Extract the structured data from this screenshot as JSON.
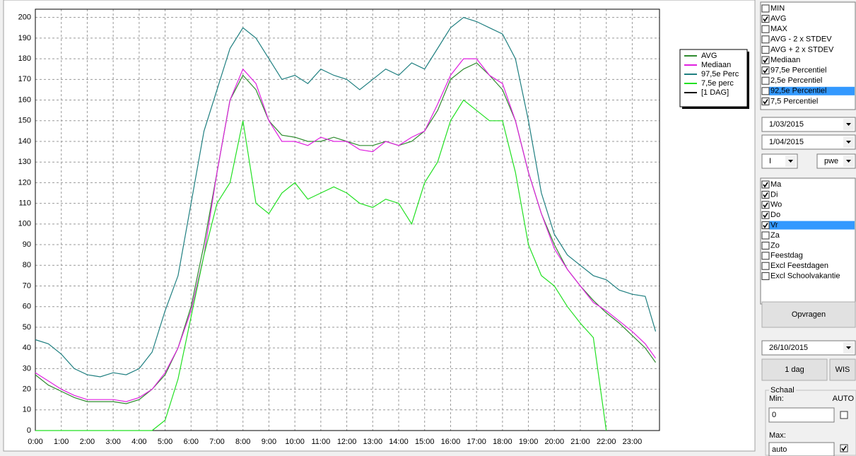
{
  "chart_data": {
    "type": "line",
    "x": [
      0,
      0.5,
      1,
      1.5,
      2,
      2.5,
      3,
      3.5,
      4,
      4.5,
      5,
      5.5,
      6,
      6.5,
      7,
      7.5,
      8,
      8.5,
      9,
      9.5,
      10,
      10.5,
      11,
      11.5,
      12,
      12.5,
      13,
      13.5,
      14,
      14.5,
      15,
      15.5,
      16,
      16.5,
      17,
      17.5,
      18,
      18.5,
      19,
      19.5,
      20,
      20.5,
      21,
      21.5,
      22,
      22.5,
      23,
      23.5,
      23.9
    ],
    "series": [
      {
        "name": "AVG",
        "color": "#2e8b2e",
        "values": [
          27,
          22,
          19,
          16,
          14,
          14,
          14,
          13,
          15,
          20,
          27,
          40,
          60,
          90,
          125,
          160,
          172,
          165,
          150,
          143,
          142,
          140,
          140,
          142,
          140,
          138,
          138,
          140,
          138,
          140,
          145,
          155,
          170,
          175,
          178,
          172,
          165,
          150,
          125,
          105,
          90,
          78,
          70,
          63,
          57,
          52,
          46,
          40,
          33
        ]
      },
      {
        "name": "Mediaan",
        "color": "#e020e0",
        "values": [
          28,
          24,
          20,
          17,
          15,
          15,
          15,
          14,
          16,
          20,
          28,
          40,
          58,
          85,
          125,
          160,
          175,
          168,
          150,
          140,
          140,
          138,
          142,
          140,
          140,
          136,
          135,
          140,
          138,
          142,
          145,
          158,
          172,
          180,
          180,
          172,
          168,
          150,
          125,
          105,
          88,
          78,
          70,
          62,
          58,
          53,
          48,
          42,
          35
        ]
      },
      {
        "name": "97,5e Perc",
        "color": "#1f7f80",
        "values": [
          44,
          42,
          37,
          30,
          27,
          26,
          28,
          27,
          30,
          38,
          58,
          75,
          110,
          145,
          165,
          185,
          195,
          190,
          180,
          170,
          172,
          168,
          175,
          172,
          170,
          165,
          170,
          175,
          172,
          178,
          175,
          185,
          195,
          200,
          198,
          195,
          192,
          180,
          150,
          115,
          95,
          85,
          80,
          75,
          73,
          68,
          66,
          65,
          48
        ]
      },
      {
        "name": "7,5e perc",
        "color": "#22e022",
        "values": [
          0,
          0,
          0,
          0,
          0,
          0,
          0,
          0,
          0,
          0,
          5,
          25,
          55,
          85,
          110,
          120,
          150,
          110,
          105,
          115,
          120,
          112,
          115,
          118,
          115,
          110,
          108,
          112,
          110,
          100,
          120,
          130,
          150,
          160,
          155,
          150,
          150,
          125,
          90,
          75,
          70,
          60,
          52,
          45,
          0,
          null,
          null,
          null,
          null
        ]
      },
      {
        "name": "[1 DAG]",
        "color": "#000000",
        "values": [
          null,
          null,
          null,
          null,
          null,
          null,
          null,
          null,
          null,
          null,
          null,
          null,
          null,
          null,
          null,
          null,
          null,
          null,
          null,
          null,
          null,
          null,
          null,
          null,
          null,
          null,
          null,
          null,
          null,
          null,
          null,
          null,
          null,
          null,
          null,
          null,
          null,
          null,
          null,
          null,
          null,
          null,
          null,
          null,
          null,
          null,
          null,
          null,
          null
        ]
      }
    ],
    "xlim": [
      0,
      24.05
    ],
    "ylim": [
      0,
      204
    ],
    "xticks": [
      {
        "value": 0,
        "label": "0:00"
      },
      {
        "value": 1,
        "label": "1:00"
      },
      {
        "value": 2,
        "label": "2:00"
      },
      {
        "value": 3,
        "label": "3:00"
      },
      {
        "value": 4,
        "label": "4:00"
      },
      {
        "value": 5,
        "label": "5:00"
      },
      {
        "value": 6,
        "label": "6:00"
      },
      {
        "value": 7,
        "label": "7:00"
      },
      {
        "value": 8,
        "label": "8:00"
      },
      {
        "value": 9,
        "label": "9:00"
      },
      {
        "value": 10,
        "label": "10:00"
      },
      {
        "value": 11,
        "label": "11:00"
      },
      {
        "value": 12,
        "label": "12:00"
      },
      {
        "value": 13,
        "label": "13:00"
      },
      {
        "value": 14,
        "label": "14:00"
      },
      {
        "value": 15,
        "label": "15:00"
      },
      {
        "value": 16,
        "label": "16:00"
      },
      {
        "value": 17,
        "label": "17:00"
      },
      {
        "value": 18,
        "label": "18:00"
      },
      {
        "value": 19,
        "label": "19:00"
      },
      {
        "value": 20,
        "label": "20:00"
      },
      {
        "value": 21,
        "label": "21:00"
      },
      {
        "value": 22,
        "label": "22:00"
      },
      {
        "value": 23,
        "label": "23:00"
      }
    ],
    "yticks": [
      0,
      10,
      20,
      30,
      40,
      50,
      60,
      70,
      80,
      90,
      100,
      110,
      120,
      130,
      140,
      150,
      160,
      170,
      180,
      190,
      200
    ],
    "grid": true,
    "legend": "upper right"
  },
  "controls": {
    "stats": [
      {
        "label": "MIN",
        "checked": false
      },
      {
        "label": "AVG",
        "checked": true
      },
      {
        "label": "MAX",
        "checked": false
      },
      {
        "label": "AVG - 2 x STDEV",
        "checked": false
      },
      {
        "label": "AVG + 2 x STDEV",
        "checked": false
      },
      {
        "label": "Mediaan",
        "checked": true
      },
      {
        "label": "97,5e Percentiel",
        "checked": true
      },
      {
        "label": "2,5e Percentiel",
        "checked": false
      },
      {
        "label": "92,5e Percentiel",
        "checked": false,
        "selected": true
      },
      {
        "label": "7,5 Percentiel",
        "checked": true
      }
    ],
    "date_from": "1/03/2015",
    "date_to": "1/04/2015",
    "select_a": "I",
    "select_b": "pwe",
    "days": [
      {
        "label": "Ma",
        "checked": true
      },
      {
        "label": "Di",
        "checked": true
      },
      {
        "label": "Wo",
        "checked": true
      },
      {
        "label": "Do",
        "checked": true
      },
      {
        "label": "Vr",
        "checked": true,
        "selected": true
      },
      {
        "label": "Za",
        "checked": false
      },
      {
        "label": "Zo",
        "checked": false
      },
      {
        "label": "Feestdag",
        "checked": false
      },
      {
        "label": "Excl Feestdagen",
        "checked": false
      },
      {
        "label": "Excl Schoolvakantie",
        "checked": false
      }
    ],
    "query_button": "Opvragen",
    "date": "26/10/2015",
    "day_button": "1 dag",
    "clear_button": "WIS",
    "scale": {
      "title": "Schaal",
      "min_label": "Min:",
      "auto_label": "AUTO",
      "min": "0",
      "min_auto": false,
      "max_label": "Max:",
      "max": "auto",
      "max_auto": true
    }
  }
}
